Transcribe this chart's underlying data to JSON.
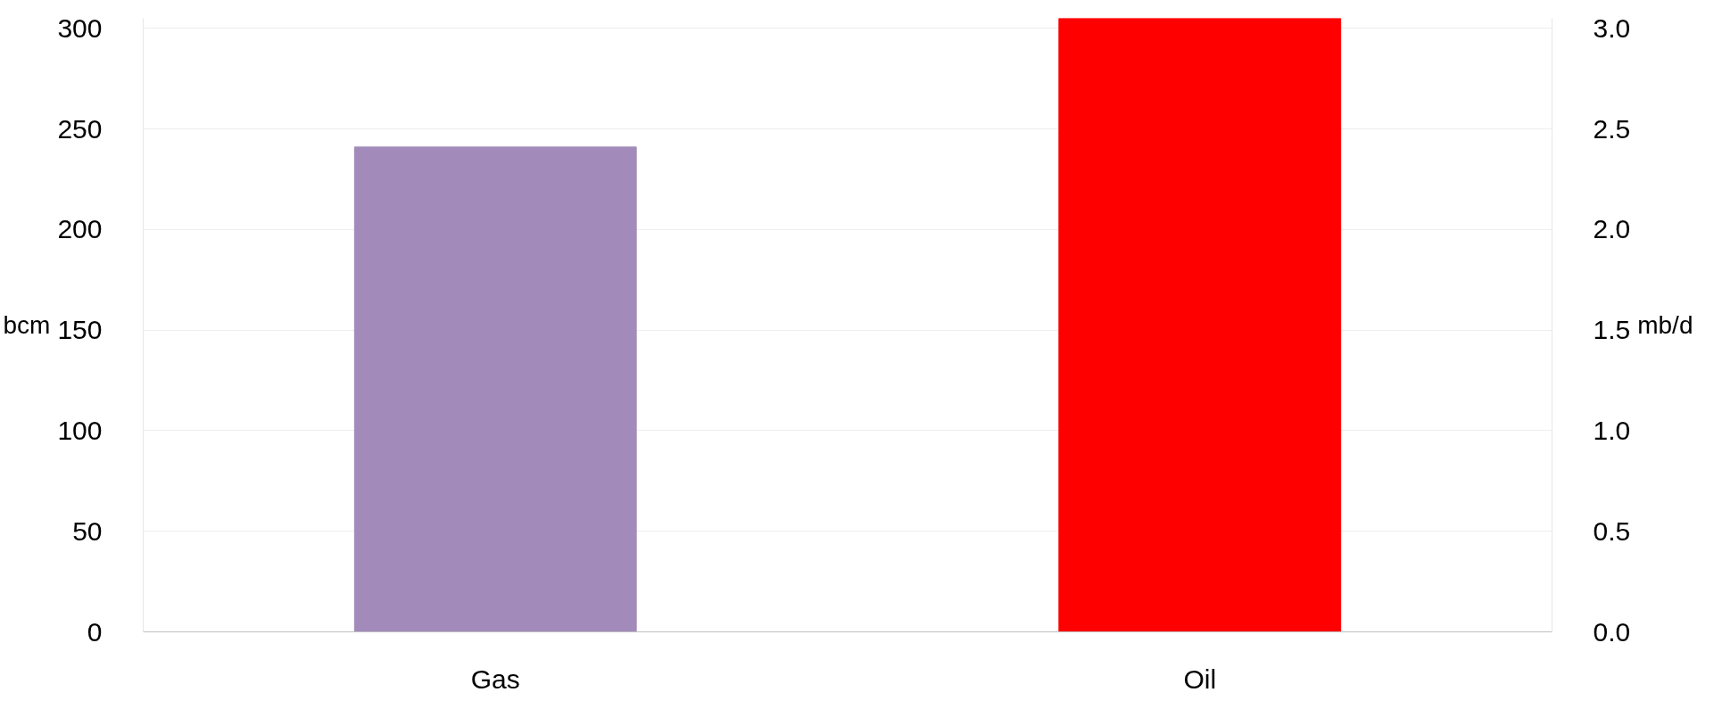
{
  "chart_data": {
    "type": "bar",
    "categories": [
      "Gas",
      "Oil"
    ],
    "ylabel": "bcm",
    "y2label": "mb/d",
    "ylim": [
      0,
      305
    ],
    "yticks": [
      0,
      50,
      100,
      150,
      200,
      250,
      300
    ],
    "y2lim": [
      0,
      3.05
    ],
    "y2ticks": [
      {
        "value": 0,
        "label": "0.0"
      },
      {
        "value": 0.5,
        "label": "0.5"
      },
      {
        "value": 1,
        "label": "1.0"
      },
      {
        "value": 1.5,
        "label": "1.5"
      },
      {
        "value": 2,
        "label": "2.0"
      },
      {
        "value": 2.5,
        "label": "2.5"
      },
      {
        "value": 3,
        "label": "3.0"
      }
    ],
    "grid": "y",
    "series": [
      {
        "color": "#a28bbb",
        "values": [
          241,
          null
        ]
      },
      {
        "color": "#ff0000",
        "values": [
          null,
          3.05
        ],
        "axis": "y2"
      }
    ]
  }
}
